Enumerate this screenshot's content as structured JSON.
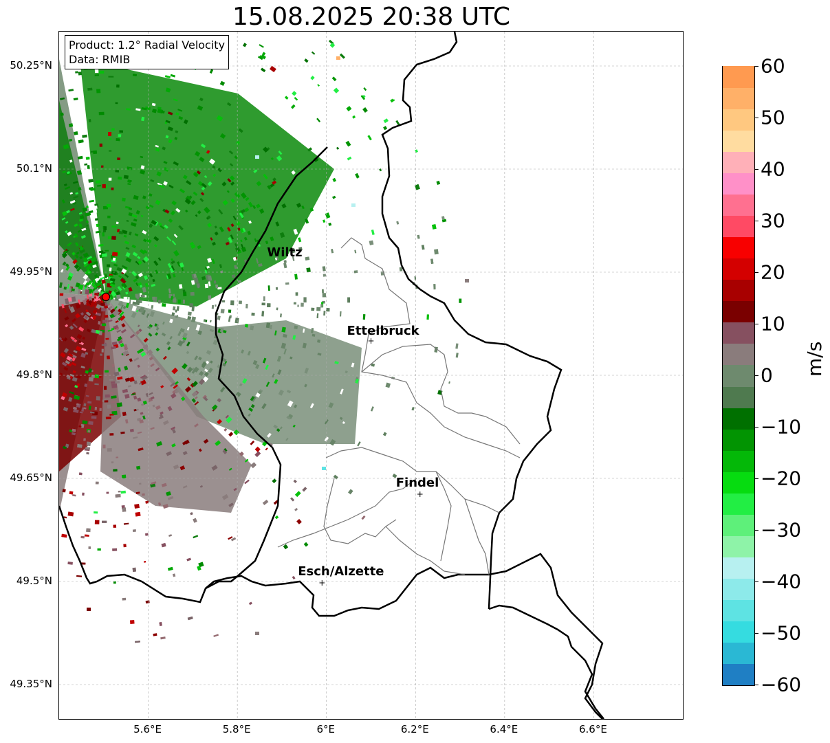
{
  "title": "15.08.2025 20:38 UTC",
  "info_box": {
    "product": "Product: 1.2° Radial Velocity",
    "data_source": "Data: RMIB"
  },
  "map": {
    "lat_ticks": [
      {
        "value": 50.25,
        "label": "50.25°N"
      },
      {
        "value": 50.1,
        "label": "50.1°N"
      },
      {
        "value": 49.95,
        "label": "49.95°N"
      },
      {
        "value": 49.8,
        "label": "49.8°N"
      },
      {
        "value": 49.65,
        "label": "49.65°N"
      },
      {
        "value": 49.5,
        "label": "49.5°N"
      },
      {
        "value": 49.35,
        "label": "49.35°N"
      }
    ],
    "lon_ticks": [
      {
        "value": 5.6,
        "label": "5.6°E"
      },
      {
        "value": 5.8,
        "label": "5.8°E"
      },
      {
        "value": 6.0,
        "label": "6°E"
      },
      {
        "value": 6.2,
        "label": "6.2°E"
      },
      {
        "value": 6.4,
        "label": "6.4°E"
      },
      {
        "value": 6.6,
        "label": "6.6°E"
      }
    ],
    "extent": {
      "lon_min": 5.4,
      "lon_max": 6.8,
      "lat_min": 49.3,
      "lat_max": 50.3
    },
    "radar_site": {
      "lon": 5.505,
      "lat": 49.914
    },
    "cities": [
      {
        "name": "Wiltz",
        "lon": 5.93,
        "lat": 49.97,
        "marker": false
      },
      {
        "name": "Ettelbruck",
        "lon": 6.1,
        "lat": 49.85,
        "marker": true
      },
      {
        "name": "Findel",
        "lon": 6.21,
        "lat": 49.627,
        "marker": true
      },
      {
        "name": "Esch/Alzette",
        "lon": 5.99,
        "lat": 49.498,
        "marker": true
      }
    ]
  },
  "colorbar": {
    "unit": "m/s",
    "min": -60,
    "max": 60,
    "ticks": [
      {
        "value": 60,
        "label": "60"
      },
      {
        "value": 50,
        "label": "50"
      },
      {
        "value": 40,
        "label": "40"
      },
      {
        "value": 30,
        "label": "30"
      },
      {
        "value": 20,
        "label": "20"
      },
      {
        "value": 10,
        "label": "10"
      },
      {
        "value": 0,
        "label": "0"
      },
      {
        "value": -10,
        "label": "−10"
      },
      {
        "value": -20,
        "label": "−20"
      },
      {
        "value": -30,
        "label": "−30"
      },
      {
        "value": -40,
        "label": "−40"
      },
      {
        "value": -50,
        "label": "−50"
      },
      {
        "value": -60,
        "label": "−60"
      }
    ],
    "colors_bottom_to_top": [
      "#1f7fc4",
      "#2ab8d4",
      "#35dce0",
      "#5ee3e3",
      "#8deaea",
      "#b7f0f0",
      "#8ef3a8",
      "#5ef07a",
      "#22ee44",
      "#06dc10",
      "#04b808",
      "#029402",
      "#007000",
      "#4f7a4f",
      "#6e8a6e",
      "#8a7c7c",
      "#865060",
      "#7a0000",
      "#a80000",
      "#d40000",
      "#f80000",
      "#ff4a64",
      "#ff7090",
      "#ff90c8",
      "#ffb0b8",
      "#ffdca0",
      "#ffc880",
      "#ffb068",
      "#ff9a50"
    ]
  }
}
